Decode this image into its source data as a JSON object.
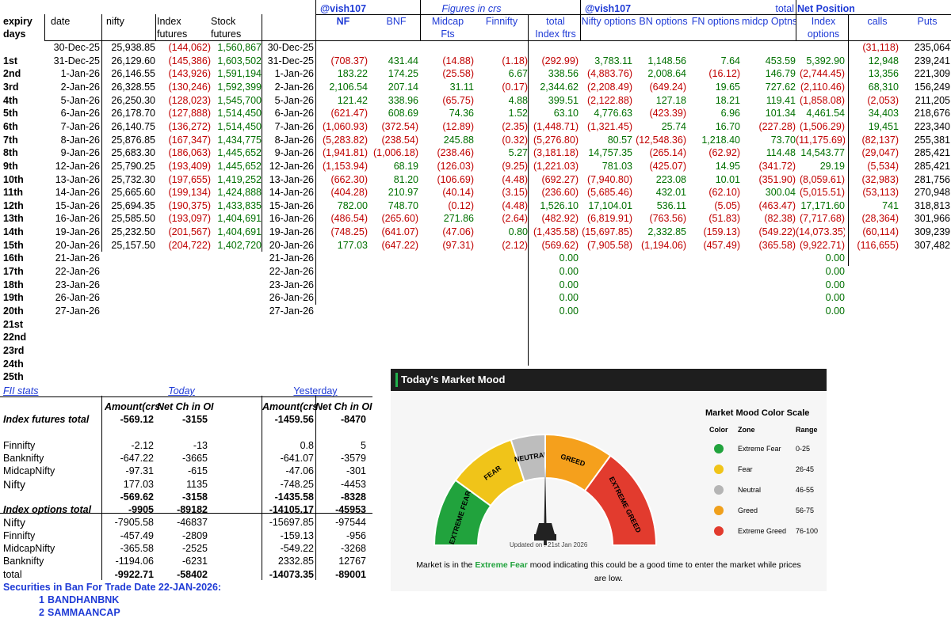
{
  "top_header": {
    "handle1": "@vish107",
    "figures": "Figures in crs",
    "handle2": "@vish107",
    "total": "total",
    "net_position": "Net Position",
    "col_expiry": "expiry",
    "col_days": "days",
    "col_date": "date",
    "col_nifty": "nifty",
    "col_index": "Index",
    "col_futures": "futures",
    "col_stock": "Stock",
    "col_stock_futures": "futures",
    "col_nf": "NF",
    "col_bnf": "BNF",
    "col_midcap": "Midcap",
    "col_fts": "Fts",
    "col_finnifty": "Finnifty",
    "col_total": "total",
    "col_index_ftrs": "Index ftrs",
    "col_nifty_options": "Nifty options",
    "col_bn_options": "BN options",
    "col_fn_options": "FN options",
    "col_midcp_optns": "midcp Optns",
    "col_index_opt": "Index",
    "col_options": "options",
    "col_calls": "calls",
    "col_puts": "Puts"
  },
  "rows": [
    {
      "day": "",
      "date": "30-Dec-25",
      "nifty": "25,938.85",
      "idx": "(144,062)",
      "stock": "1,560,867",
      "date2": "30-Dec-25",
      "nf": "",
      "bnf": "",
      "mid": "",
      "fin": "",
      "tot": "",
      "nopt": "",
      "bnopt": "",
      "fnopt": "",
      "mdopt": "",
      "iopt": "",
      "calls": "(31,118)",
      "puts": "235,064"
    },
    {
      "day": "1st",
      "date": "31-Dec-25",
      "nifty": "26,129.60",
      "idx": "(145,386)",
      "stock": "1,603,502",
      "date2": "31-Dec-25",
      "nf": "(708.37)",
      "bnf": "431.44",
      "mid": "(14.88)",
      "fin": "(1.18)",
      "tot": "(292.99)",
      "nopt": "3,783.11",
      "bnopt": "1,148.56",
      "fnopt": "7.64",
      "mdopt": "453.59",
      "iopt": "5,392.90",
      "calls": "12,948",
      "puts": "239,241"
    },
    {
      "day": "2nd",
      "date": "1-Jan-26",
      "nifty": "26,146.55",
      "idx": "(143,926)",
      "stock": "1,591,194",
      "date2": "1-Jan-26",
      "nf": "183.22",
      "bnf": "174.25",
      "mid": "(25.58)",
      "fin": "6.67",
      "tot": "338.56",
      "nopt": "(4,883.76)",
      "bnopt": "2,008.64",
      "fnopt": "(16.12)",
      "mdopt": "146.79",
      "iopt": "(2,744.45)",
      "calls": "13,356",
      "puts": "221,309"
    },
    {
      "day": "3rd",
      "date": "2-Jan-26",
      "nifty": "26,328.55",
      "idx": "(130,246)",
      "stock": "1,592,399",
      "date2": "2-Jan-26",
      "nf": "2,106.54",
      "bnf": "207.14",
      "mid": "31.11",
      "fin": "(0.17)",
      "tot": "2,344.62",
      "nopt": "(2,208.49)",
      "bnopt": "(649.24)",
      "fnopt": "19.65",
      "mdopt": "727.62",
      "iopt": "(2,110.46)",
      "calls": "68,310",
      "puts": "156,249"
    },
    {
      "day": "4th",
      "date": "5-Jan-26",
      "nifty": "26,250.30",
      "idx": "(128,023)",
      "stock": "1,545,700",
      "date2": "5-Jan-26",
      "nf": "121.42",
      "bnf": "338.96",
      "mid": "(65.75)",
      "fin": "4.88",
      "tot": "399.51",
      "nopt": "(2,122.88)",
      "bnopt": "127.18",
      "fnopt": "18.21",
      "mdopt": "119.41",
      "iopt": "(1,858.08)",
      "calls": "(2,053)",
      "puts": "211,205"
    },
    {
      "day": "5th",
      "date": "6-Jan-26",
      "nifty": "26,178.70",
      "idx": "(127,888)",
      "stock": "1,514,450",
      "date2": "6-Jan-26",
      "nf": "(621.47)",
      "bnf": "608.69",
      "mid": "74.36",
      "fin": "1.52",
      "tot": "63.10",
      "nopt": "4,776.63",
      "bnopt": "(423.39)",
      "fnopt": "6.96",
      "mdopt": "101.34",
      "iopt": "4,461.54",
      "calls": "34,403",
      "puts": "218,676"
    },
    {
      "day": "6th",
      "date": "7-Jan-26",
      "nifty": "26,140.75",
      "idx": "(136,272)",
      "stock": "1,514,450",
      "date2": "7-Jan-26",
      "nf": "(1,060.93)",
      "bnf": "(372.54)",
      "mid": "(12.89)",
      "fin": "(2.35)",
      "tot": "(1,448.71)",
      "nopt": "(1,321.45)",
      "bnopt": "25.74",
      "fnopt": "16.70",
      "mdopt": "(227.28)",
      "iopt": "(1,506.29)",
      "calls": "19,451",
      "puts": "223,340"
    },
    {
      "day": "7th",
      "date": "8-Jan-26",
      "nifty": "25,876.85",
      "idx": "(167,347)",
      "stock": "1,434,775",
      "date2": "8-Jan-26",
      "nf": "(5,283.82)",
      "bnf": "(238.54)",
      "mid": "245.88",
      "fin": "(0.32)",
      "tot": "(5,276.80)",
      "nopt": "80.57",
      "bnopt": "(12,548.36)",
      "fnopt": "1,218.40",
      "mdopt": "73.70",
      "iopt": "(11,175.69)",
      "calls": "(82,137)",
      "puts": "255,381"
    },
    {
      "day": "8th",
      "date": "9-Jan-26",
      "nifty": "25,683.30",
      "idx": "(186,063)",
      "stock": "1,445,652",
      "date2": "9-Jan-26",
      "nf": "(1,941.81)",
      "bnf": "(1,006.18)",
      "mid": "(238.46)",
      "fin": "5.27",
      "tot": "(3,181.18)",
      "nopt": "14,757.35",
      "bnopt": "(265.14)",
      "fnopt": "(62.92)",
      "mdopt": "114.48",
      "iopt": "14,543.77",
      "calls": "(29,047)",
      "puts": "285,421"
    },
    {
      "day": "9th",
      "date": "12-Jan-26",
      "nifty": "25,790.25",
      "idx": "(193,409)",
      "stock": "1,445,652",
      "date2": "12-Jan-26",
      "nf": "(1,153.94)",
      "bnf": "68.19",
      "mid": "(126.03)",
      "fin": "(9.25)",
      "tot": "(1,221.03)",
      "nopt": "781.03",
      "bnopt": "(425.07)",
      "fnopt": "14.95",
      "mdopt": "(341.72)",
      "iopt": "29.19",
      "calls": "(5,534)",
      "puts": "285,421"
    },
    {
      "day": "10th",
      "date": "13-Jan-26",
      "nifty": "25,732.30",
      "idx": "(197,655)",
      "stock": "1,419,252",
      "date2": "13-Jan-26",
      "nf": "(662.30)",
      "bnf": "81.20",
      "mid": "(106.69)",
      "fin": "(4.48)",
      "tot": "(692.27)",
      "nopt": "(7,940.80)",
      "bnopt": "223.08",
      "fnopt": "10.01",
      "mdopt": "(351.90)",
      "iopt": "(8,059.61)",
      "calls": "(32,983)",
      "puts": "281,756"
    },
    {
      "day": "11th",
      "date": "14-Jan-26",
      "nifty": "25,665.60",
      "idx": "(199,134)",
      "stock": "1,424,888",
      "date2": "14-Jan-26",
      "nf": "(404.28)",
      "bnf": "210.97",
      "mid": "(40.14)",
      "fin": "(3.15)",
      "tot": "(236.60)",
      "nopt": "(5,685.46)",
      "bnopt": "432.01",
      "fnopt": "(62.10)",
      "mdopt": "300.04",
      "iopt": "(5,015.51)",
      "calls": "(53,113)",
      "puts": "270,948"
    },
    {
      "day": "12th",
      "date": "15-Jan-26",
      "nifty": "25,694.35",
      "idx": "(190,375)",
      "stock": "1,433,835",
      "date2": "15-Jan-26",
      "nf": "782.00",
      "bnf": "748.70",
      "mid": "(0.12)",
      "fin": "(4.48)",
      "tot": "1,526.10",
      "nopt": "17,104.01",
      "bnopt": "536.11",
      "fnopt": "(5.05)",
      "mdopt": "(463.47)",
      "iopt": "17,171.60",
      "calls": "741",
      "puts": "318,813"
    },
    {
      "day": "13th",
      "date": "16-Jan-26",
      "nifty": "25,585.50",
      "idx": "(193,097)",
      "stock": "1,404,691",
      "date2": "16-Jan-26",
      "nf": "(486.54)",
      "bnf": "(265.60)",
      "mid": "271.86",
      "fin": "(2.64)",
      "tot": "(482.92)",
      "nopt": "(6,819.91)",
      "bnopt": "(763.56)",
      "fnopt": "(51.83)",
      "mdopt": "(82.38)",
      "iopt": "(7,717.68)",
      "calls": "(28,364)",
      "puts": "301,966"
    },
    {
      "day": "14th",
      "date": "19-Jan-26",
      "nifty": "25,232.50",
      "idx": "(201,567)",
      "stock": "1,404,691",
      "date2": "19-Jan-26",
      "nf": "(748.25)",
      "bnf": "(641.07)",
      "mid": "(47.06)",
      "fin": "0.80",
      "tot": "(1,435.58)",
      "nopt": "(15,697.85)",
      "bnopt": "2,332.85",
      "fnopt": "(159.13)",
      "mdopt": "(549.22)",
      "iopt": "(14,073.35)",
      "calls": "(60,114)",
      "puts": "309,239"
    },
    {
      "day": "15th",
      "date": "20-Jan-26",
      "nifty": "25,157.50",
      "idx": "(204,722)",
      "stock": "1,402,720",
      "date2": "20-Jan-26",
      "nf": "177.03",
      "bnf": "(647.22)",
      "mid": "(97.31)",
      "fin": "(2.12)",
      "tot": "(569.62)",
      "nopt": "(7,905.58)",
      "bnopt": "(1,194.06)",
      "fnopt": "(457.49)",
      "mdopt": "(365.58)",
      "iopt": "(9,922.71)",
      "calls": "(116,655)",
      "puts": "307,482"
    },
    {
      "day": "16th",
      "date": "21-Jan-26",
      "nifty": "",
      "idx": "",
      "stock": "",
      "date2": "21-Jan-26",
      "nf": "",
      "bnf": "",
      "mid": "",
      "fin": "",
      "tot": "0.00",
      "nopt": "",
      "bnopt": "",
      "fnopt": "",
      "mdopt": "",
      "iopt": "0.00",
      "calls": "",
      "puts": ""
    },
    {
      "day": "17th",
      "date": "22-Jan-26",
      "nifty": "",
      "idx": "",
      "stock": "",
      "date2": "22-Jan-26",
      "nf": "",
      "bnf": "",
      "mid": "",
      "fin": "",
      "tot": "0.00",
      "nopt": "",
      "bnopt": "",
      "fnopt": "",
      "mdopt": "",
      "iopt": "0.00",
      "calls": "",
      "puts": ""
    },
    {
      "day": "18th",
      "date": "23-Jan-26",
      "nifty": "",
      "idx": "",
      "stock": "",
      "date2": "23-Jan-26",
      "nf": "",
      "bnf": "",
      "mid": "",
      "fin": "",
      "tot": "0.00",
      "nopt": "",
      "bnopt": "",
      "fnopt": "",
      "mdopt": "",
      "iopt": "0.00",
      "calls": "",
      "puts": ""
    },
    {
      "day": "19th",
      "date": "26-Jan-26",
      "nifty": "",
      "idx": "",
      "stock": "",
      "date2": "26-Jan-26",
      "nf": "",
      "bnf": "",
      "mid": "",
      "fin": "",
      "tot": "0.00",
      "nopt": "",
      "bnopt": "",
      "fnopt": "",
      "mdopt": "",
      "iopt": "0.00",
      "calls": "",
      "puts": ""
    },
    {
      "day": "20th",
      "date": "27-Jan-26",
      "nifty": "",
      "idx": "",
      "stock": "",
      "date2": "27-Jan-26",
      "nf": "",
      "bnf": "",
      "mid": "",
      "fin": "",
      "tot": "0.00",
      "nopt": "",
      "bnopt": "",
      "fnopt": "",
      "mdopt": "",
      "iopt": "0.00",
      "calls": "",
      "puts": ""
    },
    {
      "day": "21st",
      "date": "",
      "nifty": "",
      "idx": "",
      "stock": "",
      "date2": "",
      "nf": "",
      "bnf": "",
      "mid": "",
      "fin": "",
      "tot": "",
      "nopt": "",
      "bnopt": "",
      "fnopt": "",
      "mdopt": "",
      "iopt": "",
      "calls": "",
      "puts": ""
    },
    {
      "day": "22nd",
      "date": "",
      "nifty": "",
      "idx": "",
      "stock": "",
      "date2": "",
      "nf": "",
      "bnf": "",
      "mid": "",
      "fin": "",
      "tot": "",
      "nopt": "",
      "bnopt": "",
      "fnopt": "",
      "mdopt": "",
      "iopt": "",
      "calls": "",
      "puts": ""
    },
    {
      "day": "23rd",
      "date": "",
      "nifty": "",
      "idx": "",
      "stock": "",
      "date2": "",
      "nf": "",
      "bnf": "",
      "mid": "",
      "fin": "",
      "tot": "",
      "nopt": "",
      "bnopt": "",
      "fnopt": "",
      "mdopt": "",
      "iopt": "",
      "calls": "",
      "puts": ""
    },
    {
      "day": "24th",
      "date": "",
      "nifty": "",
      "idx": "",
      "stock": "",
      "date2": "",
      "nf": "",
      "bnf": "",
      "mid": "",
      "fin": "",
      "tot": "",
      "nopt": "",
      "bnopt": "",
      "fnopt": "",
      "mdopt": "",
      "iopt": "",
      "calls": "",
      "puts": ""
    },
    {
      "day": "25th",
      "date": "",
      "nifty": "",
      "idx": "",
      "stock": "",
      "date2": "",
      "nf": "",
      "bnf": "",
      "mid": "",
      "fin": "",
      "tot": "",
      "nopt": "",
      "bnopt": "",
      "fnopt": "",
      "mdopt": "",
      "iopt": "",
      "calls": "",
      "puts": ""
    }
  ],
  "fii": {
    "title": "FII stats",
    "today": "Today",
    "yesterday": "Yesterday",
    "amount_hdr": "Amount(crs",
    "oi_hdr": "Net Ch in OI",
    "amount_hdr2": "Amount(crs",
    "oi_hdr2": "Net Ch in OI",
    "rows": [
      {
        "label": "Index futures total",
        "t_amt": "-569.12",
        "t_oi": "-3155",
        "y_amt": "-1459.56",
        "y_oi": "-8470",
        "style": "total"
      },
      {
        "label": "",
        "t_amt": "",
        "t_oi": "",
        "y_amt": "",
        "y_oi": "",
        "style": "blank"
      },
      {
        "label": "Finnifty",
        "t_amt": "-2.12",
        "t_oi": "-13",
        "y_amt": "0.8",
        "y_oi": "5",
        "style": "normal"
      },
      {
        "label": "Banknifty",
        "t_amt": "-647.22",
        "t_oi": "-3665",
        "y_amt": "-641.07",
        "y_oi": "-3579",
        "style": "normal"
      },
      {
        "label": "MidcapNifty",
        "t_amt": "-97.31",
        "t_oi": "-615",
        "y_amt": "-47.06",
        "y_oi": "-301",
        "style": "normal"
      },
      {
        "label": "Nifty",
        "t_amt": "177.03",
        "t_oi": "1135",
        "y_amt": "-748.25",
        "y_oi": "-4453",
        "style": "big"
      },
      {
        "label": "",
        "t_amt": "-569.62",
        "t_oi": "-3158",
        "y_amt": "-1435.58",
        "y_oi": "-8328",
        "style": "sub"
      },
      {
        "label": "Index options total",
        "t_amt": "-9905",
        "t_oi": "-89182",
        "y_amt": "-14105.17",
        "y_oi": "-45953",
        "style": "total"
      },
      {
        "label": "Nifty",
        "t_amt": "-7905.58",
        "t_oi": "-46837",
        "y_amt": "-15697.85",
        "y_oi": "-97544",
        "style": "big"
      },
      {
        "label": "Finnifty",
        "t_amt": "-457.49",
        "t_oi": "-2809",
        "y_amt": "-159.13",
        "y_oi": "-956",
        "style": "normal"
      },
      {
        "label": "MidcapNifty",
        "t_amt": "-365.58",
        "t_oi": "-2525",
        "y_amt": "-549.22",
        "y_oi": "-3268",
        "style": "normal"
      },
      {
        "label": "Banknifty",
        "t_amt": "-1194.06",
        "t_oi": "-6231",
        "y_amt": "2332.85",
        "y_oi": "12767",
        "style": "normal"
      },
      {
        "label": "total",
        "t_amt": "-9922.71",
        "t_oi": "-58402",
        "y_amt": "-14073.35",
        "y_oi": "-89001",
        "style": "sub"
      }
    ],
    "ban_title": "Securities in Ban For Trade Date 22-JAN-2026:",
    "ban": [
      {
        "n": "1",
        "name": "BANDHANBNK"
      },
      {
        "n": "2",
        "name": "SAMMAANCAP"
      }
    ]
  },
  "mood": {
    "title": "Today's Market Mood",
    "zones": {
      "extreme_fear": "EXTREME FEAR",
      "fear": "FEAR",
      "neutral": "NEUTRAL",
      "greed": "GREED",
      "extreme_greed": "EXTREME GREED"
    },
    "updated": "Updated on : 21st Jan 2026",
    "scale_title": "Market Mood Color Scale",
    "scale_hdr": {
      "color": "Color",
      "zone": "Zone",
      "range": "Range"
    },
    "scale": [
      {
        "zone": "Extreme Fear",
        "range": "0-25",
        "color": "#21a33d"
      },
      {
        "zone": "Fear",
        "range": "26-45",
        "color": "#f0c419"
      },
      {
        "zone": "Neutral",
        "range": "46-55",
        "color": "#b5b5b5"
      },
      {
        "zone": "Greed",
        "range": "56-75",
        "color": "#f0a01c"
      },
      {
        "zone": "Extreme Greed",
        "range": "76-100",
        "color": "#e23b2e"
      }
    ],
    "message_pre": "Market is in the ",
    "message_zone": "Extreme Fear",
    "message_post": " mood indicating this could be a good time to enter the market while prices are low.",
    "zone_colors": {
      "extreme_fear": "#21a33d",
      "fear": "#f0c419",
      "neutral": "#bdbdbd",
      "greed": "#f5a01c",
      "extreme_greed": "#e23b2e"
    }
  }
}
